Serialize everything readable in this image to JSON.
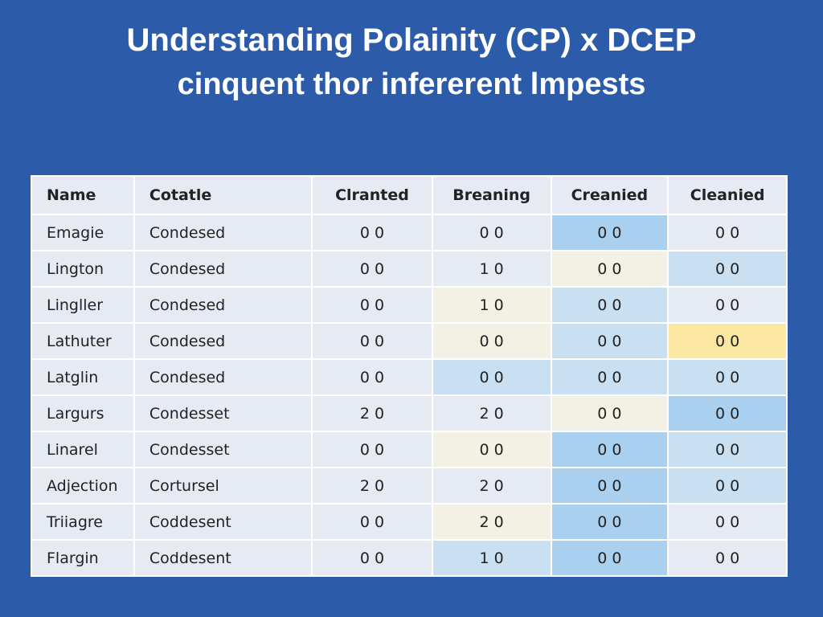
{
  "header": {
    "title": "Understanding Polainity (CP) x DCEP",
    "subtitle": "cinquent thor infererent lmpests"
  },
  "table": {
    "columns": [
      "Name",
      "Cotatle",
      "Clranted",
      "Breaning",
      "Creanied",
      "Cleanied"
    ],
    "rows": [
      [
        "Emagie",
        "Condesed",
        "0  0",
        "0  0",
        "0  0",
        "0  0"
      ],
      [
        "Lington",
        "Condesed",
        "0  0",
        "1  0",
        "0  0",
        "0  0"
      ],
      [
        "Lingller",
        "Condesed",
        "0  0",
        "1  0",
        "0  0",
        "0  0"
      ],
      [
        "Lathuter",
        "Condesed",
        "0  0",
        "0  0",
        "0  0",
        "0  0"
      ],
      [
        "Latglin",
        "Condesed",
        "0  0",
        "0  0",
        "0  0",
        "0  0"
      ],
      [
        "Largurs",
        "Condesset",
        "2  0",
        "2  0",
        "0  0",
        "0  0"
      ],
      [
        "Linarel",
        "Condesset",
        "0  0",
        "0  0",
        "0  0",
        "0  0"
      ],
      [
        "Adjection",
        "Cortursel",
        "2  0",
        "2  0",
        "0  0",
        "0  0"
      ],
      [
        "Triiagre",
        "Coddesent",
        "0  0",
        "2  0",
        "0  0",
        "0  0"
      ],
      [
        "Flargin",
        "Coddesent",
        "0  0",
        "1  0",
        "0  0",
        "0  0"
      ]
    ]
  }
}
